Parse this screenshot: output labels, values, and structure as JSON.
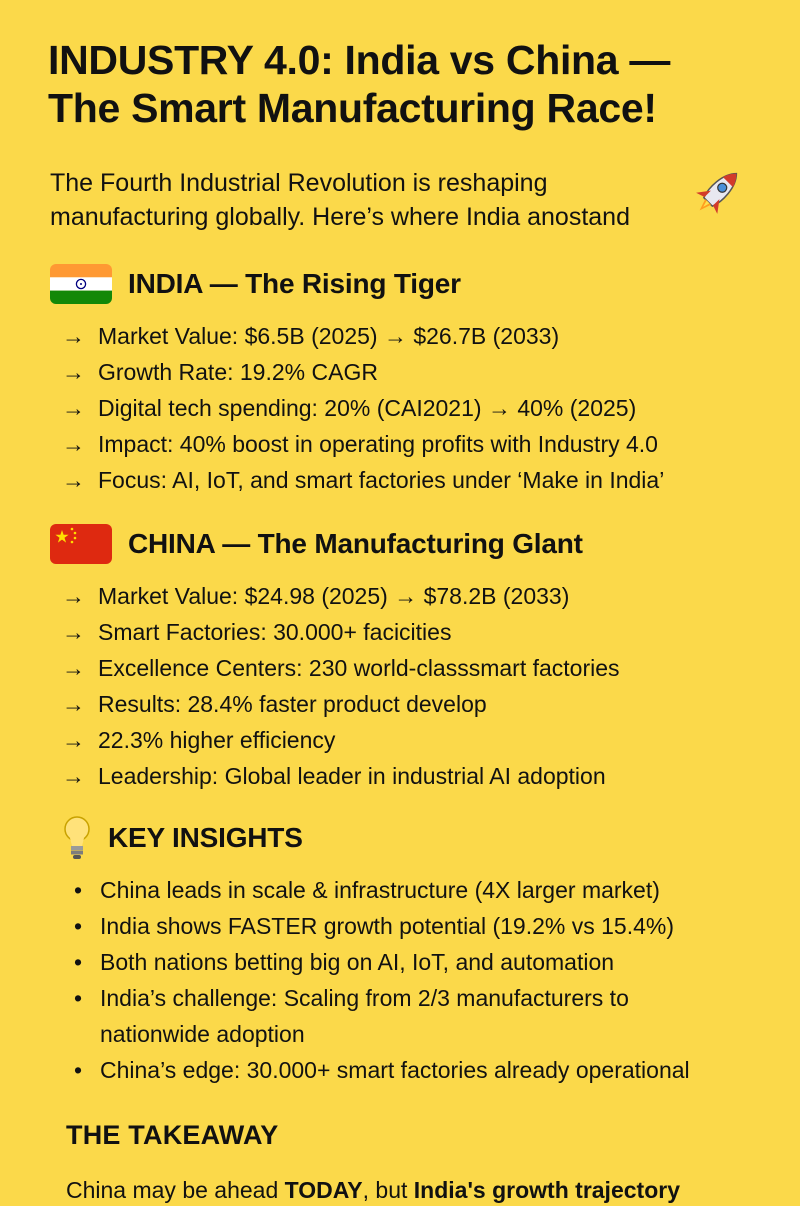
{
  "title_line1": "INDUSTRY 4.0: India vs China —",
  "title_line2": "The Smart Manufacturing Race!",
  "intro_line1": "The Fourth Industrial Revolution is reshaping",
  "intro_line2": "manufacturing globally. Here’s where India anostand",
  "rocket_icon": "rocket-icon",
  "india": {
    "heading": "INDIA — The Rising Tiger",
    "flag_colors": [
      "#ff9933",
      "#ffffff",
      "#138808"
    ],
    "chakra_color": "#000080",
    "arrow": "→",
    "items": [
      "Market Value: $6.5B (2025) → $26.7B (2033)",
      "Growth Rate: 19.2% CAGR",
      "Digital tech spending: 20% (CAI2021) → 40% (2025)",
      "Impact: 40% boost in operating profits with Industry 4.0",
      "Focus: AI, IoT, and smart factories under ‘Make in India’"
    ]
  },
  "china": {
    "heading": "CHINA — The Manufacturing Glant",
    "flag_colors": [
      "#de2910",
      "#ffde00"
    ],
    "arrow": "→",
    "items": [
      "Market Value: $24.98 (2025) → $78.2B (2033)",
      "Smart Factories: 30.000+ facicities",
      "Excellence Centers: 230 world-classsmart factories",
      "Results: 28.4% faster product develop",
      "22.3% higher efficiency",
      "Leadership: Global leader in industrial AI adoption"
    ]
  },
  "insights": {
    "heading": "KEY INSIGHTS",
    "bullet": "•",
    "items": [
      "China leads in scale & infrastructure (4X larger market)",
      "India shows FASTER growth potential (19.2% vs 15.4%)",
      "Both nations betting big on AI, IoT, and automation",
      "India’s challenge: Scaling from 2/3 manufacturers to nationwide adoption",
      "China’s edge: 30.000+ smart factories already operational"
    ]
  },
  "takeaway": {
    "heading": "THE TAKEAWAY",
    "text_part1": "China may be ahead ",
    "text_bold1": "TODAY",
    "text_part2": ", but ",
    "text_bold2": "India's growth trajectory"
  },
  "background_color": "#fbd94a"
}
